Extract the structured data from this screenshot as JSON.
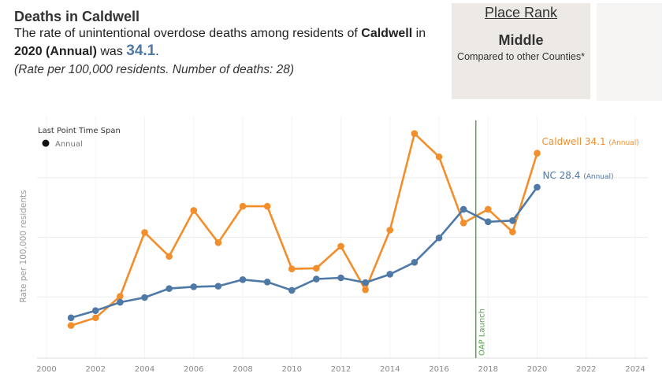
{
  "header": {
    "title": "Deaths in Caldwell",
    "desc_part1": "The rate of unintentional overdose deaths among residents of ",
    "county": "Caldwell",
    "desc_part2": " in",
    "period": "2020 (Annual)",
    "desc_part3": " was ",
    "rate": "34.1",
    "desc_part4": ".",
    "subtext": "(Rate per 100,000 residents. Number of deaths: 28)"
  },
  "rank": {
    "heading": "Place Rank",
    "value": "Middle",
    "caption": "Compared to other Counties*"
  },
  "legend": {
    "title": "Last Point Time Span",
    "item": "Annual"
  },
  "colors": {
    "caldwell": "#f28e2b",
    "nc": "#4e79a7",
    "oap": "#59a14f",
    "grid": "#ececec"
  },
  "chart_data": {
    "type": "line",
    "ylabel": "Rate per 100,000 residents",
    "xlim": [
      2000,
      2024
    ],
    "ylim": [
      0,
      40
    ],
    "x_ticks": [
      2000,
      2002,
      2004,
      2006,
      2008,
      2010,
      2012,
      2014,
      2016,
      2018,
      2020,
      2022,
      2024
    ],
    "gridlines_y": [
      10,
      20,
      30
    ],
    "x": [
      2001,
      2002,
      2003,
      2004,
      2005,
      2006,
      2007,
      2008,
      2009,
      2010,
      2011,
      2012,
      2013,
      2014,
      2015,
      2016,
      2017,
      2018,
      2019,
      2020
    ],
    "series": [
      {
        "name": "Caldwell",
        "values": [
          5.2,
          6.5,
          10.1,
          20.8,
          16.8,
          24.5,
          19.1,
          25.2,
          25.2,
          14.7,
          14.8,
          18.5,
          11.2,
          21.2,
          37.4,
          33.5,
          22.4,
          24.7,
          20.9,
          34.1
        ],
        "end_label": "Caldwell 34.1",
        "end_suffix": "(Annual)"
      },
      {
        "name": "NC",
        "values": [
          6.5,
          7.7,
          9.1,
          9.9,
          11.4,
          11.7,
          11.8,
          12.9,
          12.5,
          11.1,
          13.0,
          13.2,
          12.4,
          13.8,
          15.8,
          19.9,
          24.7,
          22.6,
          22.8,
          28.4
        ],
        "end_label": "NC 28.4",
        "end_suffix": "(Annual)"
      }
    ],
    "annotations": [
      {
        "x": 2017.5,
        "label": "OAP Launch"
      }
    ]
  }
}
